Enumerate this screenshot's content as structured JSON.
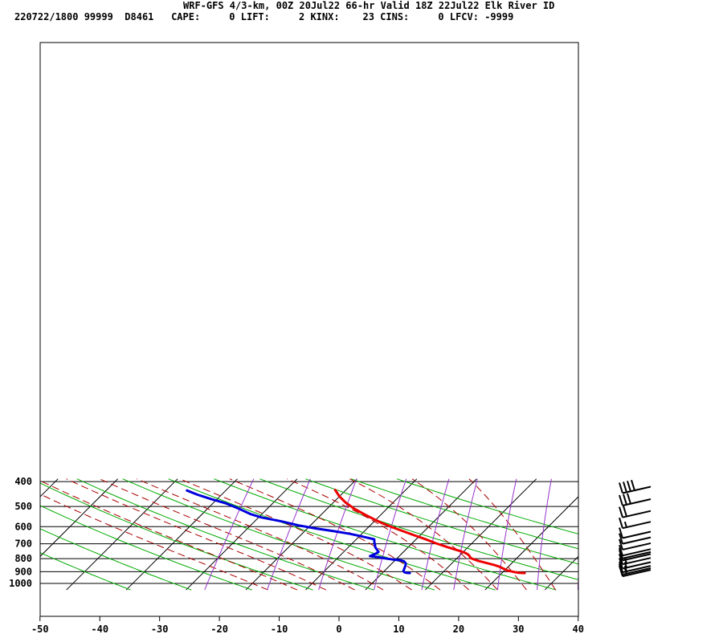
{
  "header": {
    "title": "WRF-GFS 4/3-km, 00Z 20Jul22 66-hr Valid 18Z 22Jul22 Elk River ID",
    "info": "220722/1800 99999  D8461   CAPE:     0 LIFT:     2 KINX:    23 CINS:     0 LFCV: -9999"
  },
  "chart_data": {
    "type": "line",
    "title": "WRF-GFS 4/3-km, 00Z 20Jul22 66-hr Valid 18Z 22Jul22 Elk River ID",
    "xlabel": "",
    "ylabel": "",
    "xlim": [
      -50,
      40
    ],
    "ylim": [
      1050,
      400
    ],
    "y_scale": "log",
    "grid": true,
    "x_ticks": [
      -50,
      -40,
      -30,
      -20,
      -10,
      0,
      10,
      20,
      30,
      40
    ],
    "y_ticks": [
      400,
      500,
      600,
      700,
      800,
      900,
      1000
    ],
    "x_tick_labels": [
      "-50",
      "-40",
      "-30",
      "-20",
      "-10",
      "0",
      "10",
      "20",
      "30",
      "40"
    ],
    "y_tick_labels": [
      "400",
      "500",
      "600",
      "700",
      "800",
      "900",
      "1000"
    ],
    "series": [
      {
        "color": "#ee0000",
        "points": [
          [
            -21.8,
            431
          ],
          [
            -20,
            457
          ],
          [
            -18,
            482
          ],
          [
            -15.5,
            510
          ],
          [
            -13,
            535
          ],
          [
            -10.5,
            560
          ],
          [
            -8.5,
            580
          ],
          [
            -6,
            603
          ],
          [
            -3.5,
            625
          ],
          [
            -1,
            648
          ],
          [
            1.5,
            671
          ],
          [
            4,
            697
          ],
          [
            6.5,
            721
          ],
          [
            9.2,
            746
          ],
          [
            10.5,
            760
          ],
          [
            11.2,
            770
          ],
          [
            11.8,
            783
          ],
          [
            12.2,
            795
          ],
          [
            13,
            805
          ],
          [
            14,
            816
          ],
          [
            15.5,
            830
          ],
          [
            17.3,
            846
          ],
          [
            18.5,
            860
          ],
          [
            19.5,
            875
          ],
          [
            20.5,
            890
          ],
          [
            21.8,
            902
          ],
          [
            22.8,
            909
          ],
          [
            23.8,
            911
          ]
        ]
      },
      {
        "color": "#0000dd",
        "points": [
          [
            -46.5,
            433
          ],
          [
            -44,
            450
          ],
          [
            -41,
            468
          ],
          [
            -38,
            485
          ],
          [
            -35,
            508
          ],
          [
            -32,
            535
          ],
          [
            -29.5,
            552
          ],
          [
            -25.5,
            572
          ],
          [
            -22,
            593
          ],
          [
            -18.5,
            610
          ],
          [
            -15,
            625
          ],
          [
            -12,
            640
          ],
          [
            -10,
            652
          ],
          [
            -8.5,
            662
          ],
          [
            -7,
            672
          ],
          [
            -6.5,
            690
          ],
          [
            -6,
            705
          ],
          [
            -5.5,
            722
          ],
          [
            -4.8,
            738
          ],
          [
            -4.2,
            752
          ],
          [
            -4.3,
            763
          ],
          [
            -4.6,
            772
          ],
          [
            -4.9,
            782
          ],
          [
            -3.2,
            790
          ],
          [
            -2,
            798
          ],
          [
            -0.5,
            806
          ],
          [
            1,
            813
          ],
          [
            1.7,
            820
          ],
          [
            2.3,
            835
          ],
          [
            2.6,
            850
          ],
          [
            2.8,
            865
          ],
          [
            3,
            880
          ],
          [
            3.2,
            895
          ],
          [
            3.6,
            905
          ],
          [
            4.1,
            910
          ],
          [
            4.6,
            911
          ]
        ]
      }
    ],
    "isotherms": [
      -130,
      -120,
      -110,
      -100,
      -90,
      -80,
      -70,
      -60,
      -50,
      -40,
      -30,
      -20,
      -10,
      0,
      10,
      20,
      30,
      40
    ],
    "dry_adiabats_K": [
      230,
      240,
      250,
      260,
      270,
      280,
      290,
      300,
      310,
      320,
      330,
      340
    ],
    "moist_adiabats_C": [
      -20,
      -15,
      -10,
      -5,
      0,
      5,
      10,
      15,
      20,
      25,
      30
    ],
    "mixing_ratios_gkg": [
      0.4,
      1,
      2,
      4,
      7,
      10,
      16,
      24,
      36
    ],
    "wind_barbs": [
      {
        "p": 431,
        "speed": 40
      },
      {
        "p": 482,
        "speed": 30
      },
      {
        "p": 536,
        "speed": 20
      },
      {
        "p": 591,
        "speed": 15
      },
      {
        "p": 646,
        "speed": 10
      },
      {
        "p": 680,
        "speed": 10
      },
      {
        "p": 717,
        "speed": 10
      },
      {
        "p": 756,
        "speed": 10
      },
      {
        "p": 776,
        "speed": 10
      },
      {
        "p": 790,
        "speed": 10
      },
      {
        "p": 818,
        "speed": 15
      },
      {
        "p": 850,
        "speed": 15
      },
      {
        "p": 879,
        "speed": 15
      },
      {
        "p": 897,
        "speed": 15
      },
      {
        "p": 911,
        "speed": 10
      }
    ],
    "colors": {
      "isotherm": "#000000",
      "dry_adiabat": "#00aa00",
      "moist_adiabat": "#aa0000",
      "mixing_ratio": "#9933cc",
      "barb": "#000000"
    }
  }
}
